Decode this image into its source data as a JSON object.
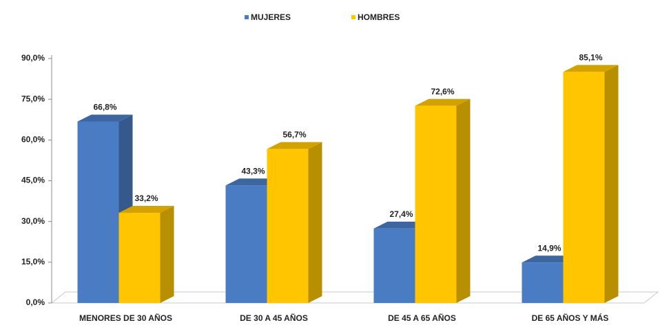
{
  "chart_data": {
    "type": "bar",
    "categories": [
      "MENORES DE 30 AÑOS",
      "DE 30 A 45 AÑOS",
      "DE 45 A 65 AÑOS",
      "DE 65 AÑOS Y MÁS"
    ],
    "series": [
      {
        "name": "MUJERES",
        "color": "#4a7cc4",
        "values": [
          66.8,
          43.3,
          27.4,
          14.9
        ],
        "value_labels": [
          "66,8%",
          "43,3%",
          "27,4%",
          "14,9%"
        ]
      },
      {
        "name": "HOMBRES",
        "color": "#ffc600",
        "values": [
          33.2,
          56.7,
          72.6,
          85.1
        ],
        "value_labels": [
          "33,2%",
          "56,7%",
          "72,6%",
          "85,1%"
        ]
      }
    ],
    "ylim": [
      0,
      90
    ],
    "yticks": [
      {
        "value": 0,
        "label": "0,0%"
      },
      {
        "value": 15,
        "label": "15,0%"
      },
      {
        "value": 30,
        "label": "30,0%"
      },
      {
        "value": 45,
        "label": "45,0%"
      },
      {
        "value": 60,
        "label": "60,0%"
      },
      {
        "value": 75,
        "label": "75,0%"
      },
      {
        "value": 90,
        "label": "90,0%"
      }
    ],
    "legend": "top",
    "grid": false
  }
}
